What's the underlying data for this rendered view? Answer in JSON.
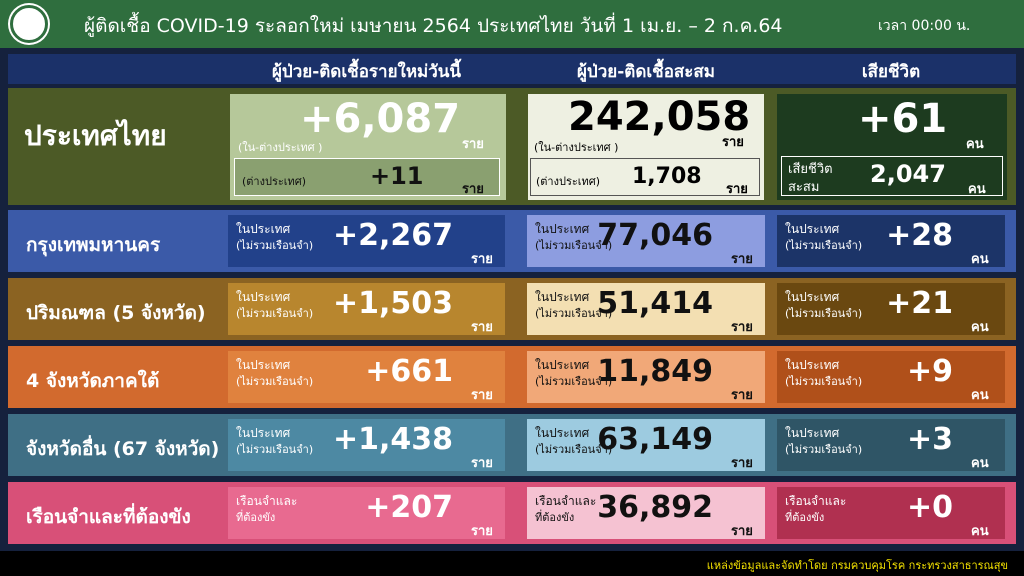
{
  "header": {
    "title": "ผู้ติดเชื้อ COVID-19 ระลอกใหม่ เมษายน 2564 ประเทศไทย วันที่ 1 เม.ย. – 2 ก.ค.64",
    "time": "เวลา 00:00 น."
  },
  "columns": [
    "ผู้ป่วย-ติดเชื้อรายใหม่วันนี้",
    "ผู้ป่วย-ติดเชื้อสะสม",
    "เสียชีวิต"
  ],
  "national": {
    "label": "ประเทศไทย",
    "new": {
      "value": "+6,087",
      "note": "(ใน-ต่างประเทศ )",
      "unit": "ราย",
      "sub_label": "(ต่างประเทศ)",
      "sub_value": "+11",
      "sub_unit": "ราย"
    },
    "cumulative": {
      "value": "242,058",
      "note": "(ใน-ต่างประเทศ )",
      "unit": "ราย",
      "sub_label": "(ต่างประเทศ)",
      "sub_value": "1,708",
      "sub_unit": "ราย"
    },
    "deaths": {
      "value": "+61",
      "unit": "คน",
      "sub_label": [
        "เสียชีวิต",
        "สะสม"
      ],
      "sub_value": "2,047",
      "sub_unit": "คน"
    }
  },
  "regions": [
    {
      "label": "กรุงเทพมหานคร",
      "new": {
        "note": [
          "ในประเทศ",
          "(ไม่รวมเรือนจำ)"
        ],
        "value": "+2,267",
        "unit": "ราย"
      },
      "cumulative": {
        "note": [
          "ในประเทศ",
          "(ไม่รวมเรือนจำ)"
        ],
        "value": "77,046",
        "unit": "ราย"
      },
      "deaths": {
        "note": [
          "ในประเทศ",
          "(ไม่รวมเรือนจำ)"
        ],
        "value": "+28",
        "unit": "คน"
      }
    },
    {
      "label": "ปริมณฑล (5 จังหวัด)",
      "new": {
        "note": [
          "ในประเทศ",
          "(ไม่รวมเรือนจำ)"
        ],
        "value": "+1,503",
        "unit": "ราย"
      },
      "cumulative": {
        "note": [
          "ในประเทศ",
          "(ไม่รวมเรือนจำ)"
        ],
        "value": "51,414",
        "unit": "ราย"
      },
      "deaths": {
        "note": [
          "ในประเทศ",
          "(ไม่รวมเรือนจำ)"
        ],
        "value": "+21",
        "unit": "คน"
      }
    },
    {
      "label": "4 จังหวัดภาคใต้",
      "new": {
        "note": [
          "ในประเทศ",
          "(ไม่รวมเรือนจำ)"
        ],
        "value": "+661",
        "unit": "ราย"
      },
      "cumulative": {
        "note": [
          "ในประเทศ",
          "(ไม่รวมเรือนจำ)"
        ],
        "value": "11,849",
        "unit": "ราย"
      },
      "deaths": {
        "note": [
          "ในประเทศ",
          "(ไม่รวมเรือนจำ)"
        ],
        "value": "+9",
        "unit": "คน"
      }
    },
    {
      "label": "จังหวัดอื่น (67 จังหวัด)",
      "new": {
        "note": [
          "ในประเทศ",
          "(ไม่รวมเรือนจำ)"
        ],
        "value": "+1,438",
        "unit": "ราย"
      },
      "cumulative": {
        "note": [
          "ในประเทศ",
          "(ไม่รวมเรือนจำ)"
        ],
        "value": "63,149",
        "unit": "ราย"
      },
      "deaths": {
        "note": [
          "ในประเทศ",
          "(ไม่รวมเรือนจำ)"
        ],
        "value": "+3",
        "unit": "คน"
      }
    },
    {
      "label": "เรือนจำและที่ต้องขัง",
      "new": {
        "note": [
          "เรือนจำและ",
          "ที่ต้องขัง"
        ],
        "value": "+207",
        "unit": "ราย"
      },
      "cumulative": {
        "note": [
          "เรือนจำและ",
          "ที่ต้องขัง"
        ],
        "value": "36,892",
        "unit": "ราย"
      },
      "deaths": {
        "note": [
          "เรือนจำและ",
          "ที่ต้องขัง"
        ],
        "value": "+0",
        "unit": "คน"
      }
    }
  ],
  "footer": "แหล่งข้อมูลและจัดทำโดย  กรมควบคุมโรค กระทรวงสาธารณสุข"
}
